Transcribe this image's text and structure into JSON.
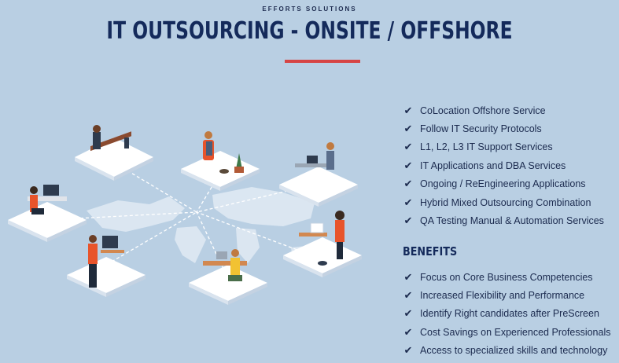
{
  "header": {
    "kicker": "EFFORTS SOLUTIONS",
    "title": "IT OUTSOURCING - ONSITE / OFFSHORE"
  },
  "services": [
    "CoLocation Offshore Service",
    "Follow IT Security Protocols",
    "L1, L2, L3 IT Support Services",
    "IT Applications and DBA Services",
    "Ongoing / ReEngineering Applications",
    "Hybrid Mixed Outsourcing Combination",
    "QA Testing Manual & Automation Services"
  ],
  "benefits": {
    "title": "BENEFITS",
    "items": [
      "Focus on Core Business Competencies",
      "Increased Flexibility and Performance",
      "Identify Right candidates after PreScreen",
      "Cost Savings on Experienced Professionals",
      "Access to specialized skills and technology"
    ]
  },
  "colors": {
    "background": "#b9cfe3",
    "title": "#142a5b",
    "accent": "#d64545",
    "platform": "#ffffff",
    "shirt_orange": "#e8542b"
  },
  "icons": {
    "check": "checkmark-icon",
    "map": "world-map-illustration"
  }
}
